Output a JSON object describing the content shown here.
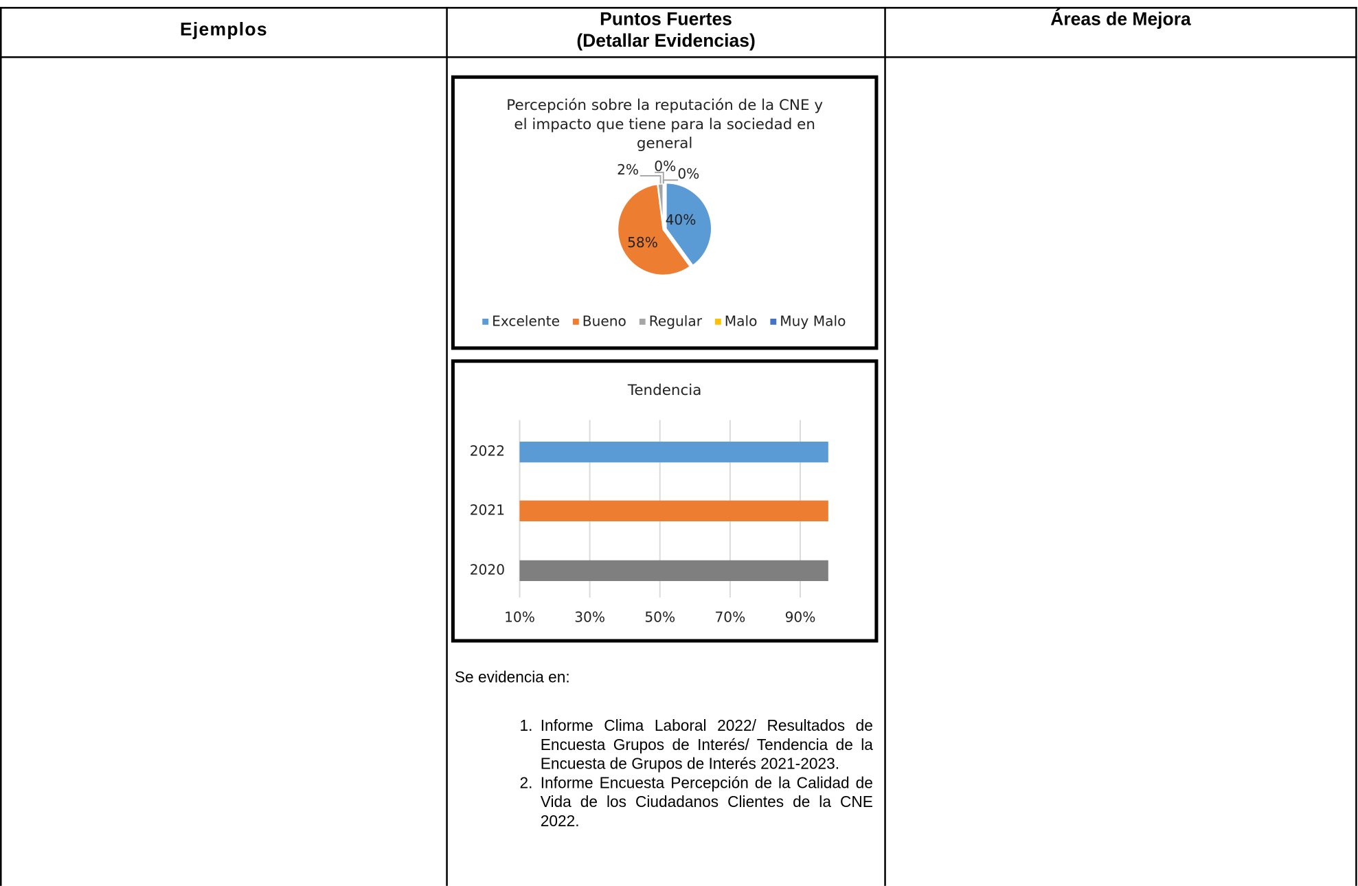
{
  "table": {
    "headers": [
      "Ejemplos",
      "Puntos Fuertes\n(Detallar Evidencias)",
      "Áreas de Mejora"
    ]
  },
  "chart_data": [
    {
      "type": "pie",
      "title": "Percepción sobre la reputación de la CNE y el impacto que tiene para la sociedad en general",
      "categories": [
        "Excelente",
        "Bueno",
        "Regular",
        "Malo",
        "Muy Malo"
      ],
      "values": [
        40,
        58,
        2,
        0,
        0
      ],
      "value_labels": [
        "40%",
        "58%",
        "2%",
        "0%",
        "0%"
      ],
      "colors": [
        "#5b9bd5",
        "#ed7d31",
        "#a5a5a5",
        "#ffc000",
        "#4472c4"
      ],
      "legend": "bottom"
    },
    {
      "type": "barh",
      "title": "Tendencia",
      "categories": [
        "2022",
        "2021",
        "2020"
      ],
      "values": [
        98,
        98,
        98
      ],
      "colors": [
        "#5b9bd5",
        "#ed7d31",
        "#7f7f7f"
      ],
      "xlim": [
        10,
        100
      ],
      "xticks": [
        {
          "value": 10,
          "label": "10%"
        },
        {
          "value": 30,
          "label": "30%"
        },
        {
          "value": 50,
          "label": "50%"
        },
        {
          "value": 70,
          "label": "70%"
        },
        {
          "value": 90,
          "label": "90%"
        }
      ],
      "grid": true
    }
  ],
  "evidence": {
    "intro": "Se evidencia en:",
    "items": [
      "Informe Clima Laboral 2022/ Resultados de Encuesta Grupos de Interés/ Tendencia de la Encuesta de Grupos de Interés 2021-2023.",
      "Informe Encuesta Percepción de la Calidad de Vida de los Ciudadanos Clientes de la CNE 2022."
    ]
  }
}
